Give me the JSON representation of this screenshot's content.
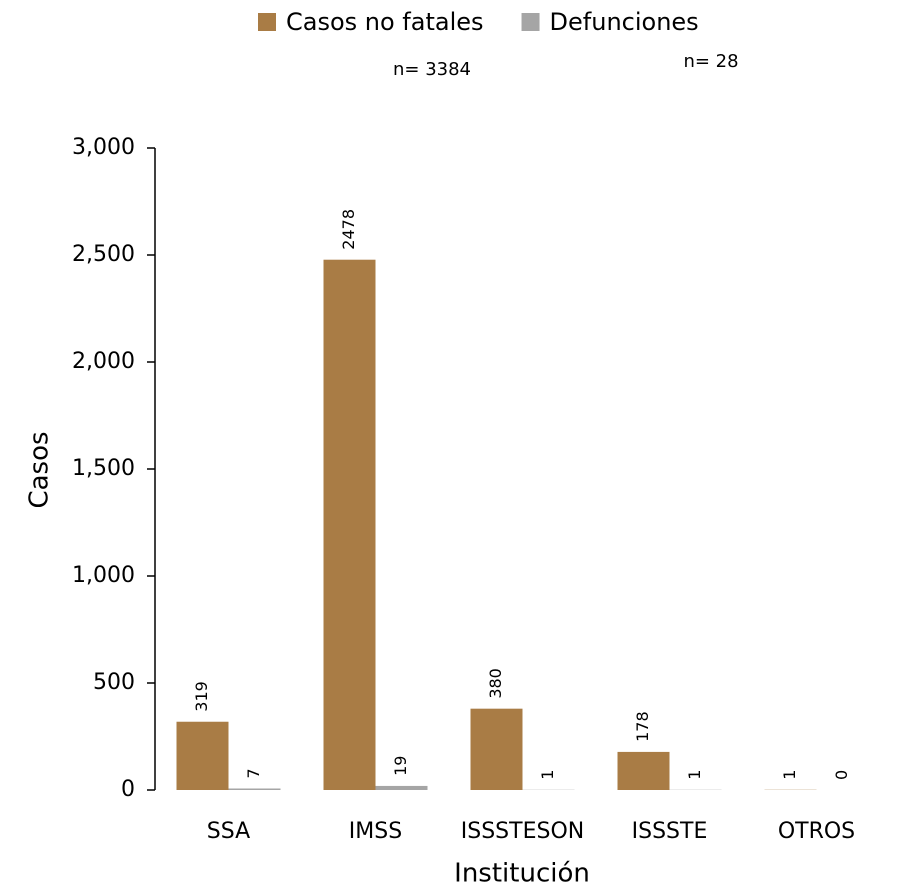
{
  "chart_data": {
    "type": "bar",
    "x_label": "Institución",
    "y_label": "Casos",
    "categories": [
      "SSA",
      "IMSS",
      "ISSSTESON",
      "ISSSTE",
      "OTROS"
    ],
    "series": [
      {
        "name": "Casos no fatales",
        "color": "#a97c45",
        "values": [
          319,
          2478,
          380,
          178,
          1
        ]
      },
      {
        "name": "Defunciones",
        "color": "#a5a5a5",
        "values": [
          7,
          19,
          1,
          1,
          0
        ]
      }
    ],
    "annotations": [
      "n= 3384",
      "n= 28"
    ],
    "ylim": [
      0,
      3000
    ],
    "yticks": [
      0,
      500,
      {
        "value": 1000,
        "label": "1,000"
      },
      {
        "value": 1500,
        "label": "1,500"
      },
      {
        "value": 2000,
        "label": "2,000"
      },
      {
        "value": 2500,
        "label": "2,500"
      },
      {
        "value": 3000,
        "label": "3,000"
      }
    ],
    "legend": "top",
    "grid": false
  }
}
